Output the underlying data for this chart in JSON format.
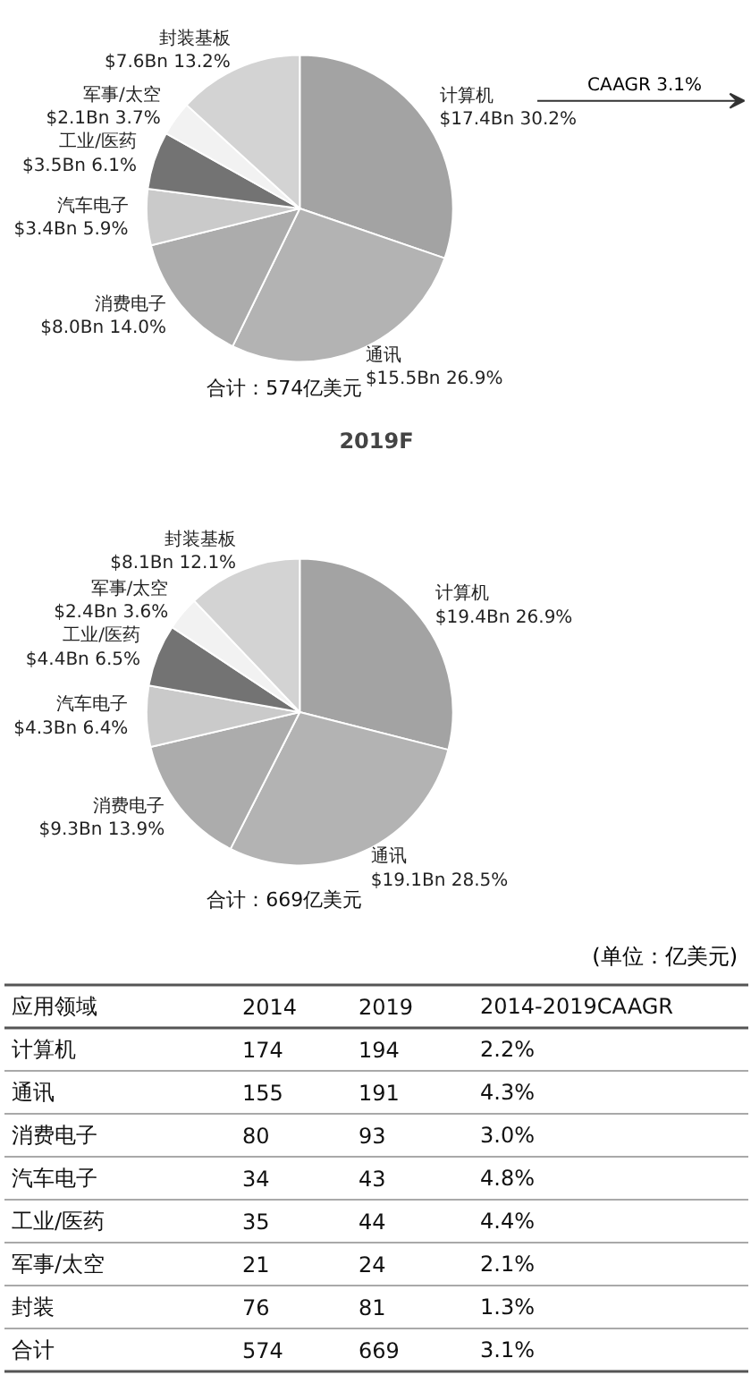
{
  "chart_data": [
    {
      "type": "pie",
      "categories": [
        "计算机",
        "通讯",
        "消费电子",
        "汽车电子",
        "工业/医药",
        "军事/太空",
        "封装基板"
      ],
      "values": [
        17.4,
        15.5,
        8.0,
        3.4,
        3.5,
        2.1,
        7.6
      ],
      "value_labels": [
        "$17.4Bn 30.2%",
        "$15.5Bn 26.9%",
        "$8.0Bn 14.0%",
        "$3.4Bn 5.9%",
        "$3.5Bn 6.1%",
        "$2.1Bn 3.7%",
        "$7.6Bn 13.2%"
      ],
      "colors": [
        "#a3a3a3",
        "#b3b3b3",
        "#acacac",
        "#cacaca",
        "#737373",
        "#f2f2f2",
        "#d3d3d3"
      ],
      "annotations": [
        "合计：574亿美元",
        "CAAGR 3.1%"
      ]
    },
    {
      "type": "pie",
      "title": "2019F",
      "categories": [
        "计算机",
        "通讯",
        "消费电子",
        "汽车电子",
        "工业/医药",
        "军事/太空",
        "封装基板"
      ],
      "values": [
        19.4,
        19.1,
        9.3,
        4.3,
        4.4,
        2.4,
        8.1
      ],
      "value_labels": [
        "$19.4Bn 26.9%",
        "$19.1Bn 28.5%",
        "$9.3Bn 13.9%",
        "$4.3Bn 6.4%",
        "$4.4Bn 6.5%",
        "$2.4Bn 3.6%",
        "$8.1Bn 12.1%"
      ],
      "colors": [
        "#a3a3a3",
        "#b3b3b3",
        "#acacac",
        "#cacaca",
        "#737373",
        "#f2f2f2",
        "#d3d3d3"
      ],
      "annotations": [
        "合计：669亿美元"
      ]
    },
    {
      "type": "other",
      "title": "(单位：亿美元)",
      "xlabel": "应用领域",
      "categories": [
        "计算机",
        "通讯",
        "消费电子",
        "汽车电子",
        "工业/医药",
        "军事/太空",
        "封装",
        "合计"
      ],
      "series": [
        {
          "name": "2014",
          "values": [
            174,
            155,
            80,
            34,
            35,
            21,
            76,
            574
          ],
          "value_labels": [
            "174",
            "155",
            "80",
            "34",
            "35",
            "21",
            "76",
            "574"
          ]
        },
        {
          "name": "2019",
          "values": [
            194,
            191,
            93,
            43,
            44,
            24,
            81,
            669
          ],
          "value_labels": [
            "194",
            "191",
            "93",
            "43",
            "44",
            "24",
            "81",
            "669"
          ]
        },
        {
          "name": "2014-2019CAAGR",
          "values": [
            2.2,
            4.3,
            3.0,
            4.8,
            4.4,
            2.1,
            1.3,
            3.1
          ],
          "value_labels": [
            "2.2%",
            "4.3%",
            "3.0%",
            "4.8%",
            "4.4%",
            "2.1%",
            "1.3%",
            "3.1%"
          ]
        }
      ]
    }
  ]
}
